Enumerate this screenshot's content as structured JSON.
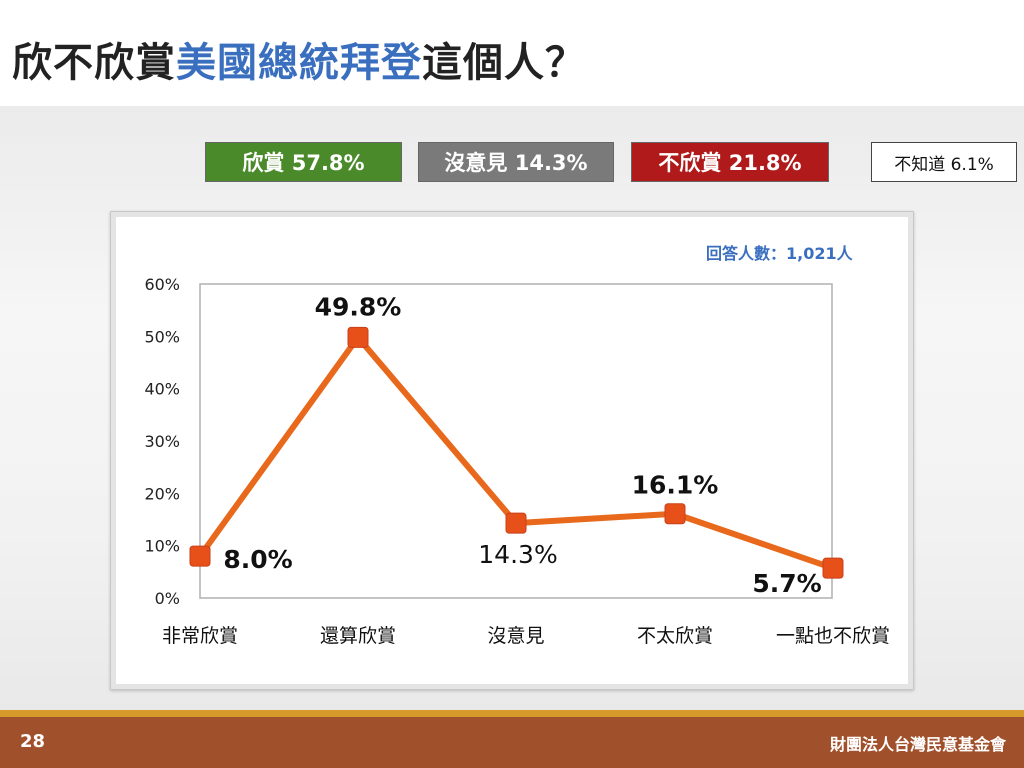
{
  "header": {
    "title_prefix": "欣不欣賞",
    "title_highlight": "美國總統拜登",
    "title_suffix": "這個人？"
  },
  "summary": {
    "approve": "欣賞 57.8%",
    "neutral": "沒意見 14.3%",
    "disapprove": "不欣賞 21.8%",
    "unknown": "不知道 6.1%"
  },
  "respondents": "回答人數：1,021人",
  "chart_data": {
    "type": "line",
    "categories": [
      "非常欣賞",
      "還算欣賞",
      "沒意見",
      "不太欣賞",
      "一點也不欣賞"
    ],
    "values": [
      8.0,
      49.8,
      14.3,
      16.1,
      5.7
    ],
    "value_labels": [
      "8.0%",
      "49.8%",
      "14.3%",
      "16.1%",
      "5.7%"
    ],
    "yticks": [
      "0%",
      "10%",
      "20%",
      "30%",
      "40%",
      "50%",
      "60%"
    ],
    "ylim": [
      0,
      60
    ],
    "grid": false,
    "line_color": "#e8681c",
    "marker_color": "#e8501a"
  },
  "footer": {
    "page_number": "28",
    "organization": "財團法人台灣民意基金會"
  },
  "colors": {
    "title_highlight": "#3a6fbf",
    "approve": "#4a8a2a",
    "neutral": "#7a7a7a",
    "disapprove": "#b01a1a",
    "footer": "#a0502a"
  }
}
